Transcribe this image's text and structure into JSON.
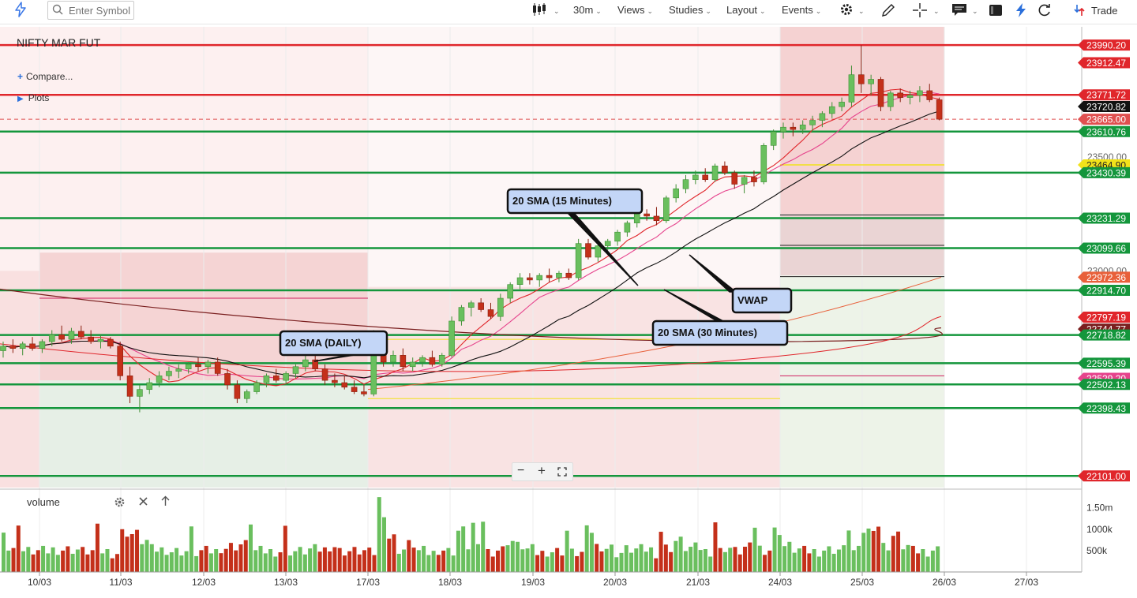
{
  "toolbar": {
    "search_placeholder": "Enter Symbol",
    "interval": "30m",
    "views": "Views",
    "studies": "Studies",
    "layout": "Layout",
    "events": "Events",
    "trade": "Trade",
    "icons": [
      "bolt-icon",
      "search-icon",
      "candlestick-icon",
      "gear-icon",
      "pencil-icon",
      "crosshair-icon",
      "chat-icon",
      "screen-icon",
      "flash-icon",
      "refresh-icon",
      "trade-icon"
    ]
  },
  "legend": {
    "symbol": "NIFTY MAR FUT",
    "compare": "Compare...",
    "plots": "Plots"
  },
  "volume_panel": {
    "label": "volume",
    "icons": [
      "gear-icon",
      "close-icon",
      "arrow-up-icon"
    ]
  },
  "zoom_controls": {
    "minus": "−",
    "plus": "+"
  },
  "colors": {
    "up": "#6abf5e",
    "down": "#c4301a",
    "red_level": "#e0262b",
    "green_level": "#14963c",
    "sma_daily": "#7a1f1f",
    "sma_30": "#111111",
    "sma_15": "#e0262b",
    "vwap": "#e6438c"
  },
  "chart_data": {
    "type": "candlestick",
    "title": "NIFTY MAR FUT",
    "interval": "30m",
    "x_tick_labels": [
      "10/03",
      "11/03",
      "12/03",
      "13/03",
      "17/03",
      "18/03",
      "19/03",
      "20/03",
      "21/03",
      "24/03",
      "25/03",
      "26/03",
      "27/03"
    ],
    "price_axis_ticks": [
      23500,
      23000
    ],
    "volume_axis_ticks": [
      "1.50m",
      "1000k",
      "500k"
    ],
    "ylim": [
      22000,
      24100
    ],
    "price_labels": [
      {
        "value": "23990.20",
        "color": "#e0262b"
      },
      {
        "value": "23912.47",
        "color": "#e0262b"
      },
      {
        "value": "23771.72",
        "color": "#e0262b"
      },
      {
        "value": "23720.82",
        "color": "#111111"
      },
      {
        "value": "23665.00",
        "color": "#e05050"
      },
      {
        "value": "23610.76",
        "color": "#14963c"
      },
      {
        "value": "23500.00",
        "color": "none"
      },
      {
        "value": "23464.90",
        "color": "#f1e21a"
      },
      {
        "value": "23430.39",
        "color": "#14963c"
      },
      {
        "value": "23231.29",
        "color": "#14963c"
      },
      {
        "value": "23099.66",
        "color": "#14963c"
      },
      {
        "value": "23000.00",
        "color": "none"
      },
      {
        "value": "22972.36",
        "color": "#e8603a"
      },
      {
        "value": "22914.70",
        "color": "#14963c"
      },
      {
        "value": "22797.19",
        "color": "#e0262b"
      },
      {
        "value": "22744.77",
        "color": "#7a1f1f"
      },
      {
        "value": "22718.82",
        "color": "#14963c"
      },
      {
        "value": "22595.39",
        "color": "#14963c"
      },
      {
        "value": "22529.20",
        "color": "#e6438c"
      },
      {
        "value": "22502.13",
        "color": "#14963c"
      },
      {
        "value": "22398.43",
        "color": "#14963c"
      },
      {
        "value": "22101.00",
        "color": "#e0262b"
      }
    ],
    "horizontal_levels": {
      "red": [
        23990.2,
        23771.72
      ],
      "green": [
        23610.76,
        23430.39,
        23231.29,
        23099.66,
        22914.7,
        22718.82,
        22595.39,
        22502.13,
        22398.43,
        22101.0
      ]
    },
    "annotations": [
      "20 SMA (15 Minutes)",
      "VWAP",
      "20 SMA (30 Minutes)",
      "20 SMA (DAILY)"
    ],
    "series": [
      {
        "name": "20 SMA (DAILY)",
        "type": "line"
      },
      {
        "name": "20 SMA (30 Minutes)",
        "type": "line"
      },
      {
        "name": "20 SMA (15 Minutes)",
        "type": "line"
      },
      {
        "name": "VWAP",
        "type": "line"
      }
    ],
    "candles": [
      [
        0,
        22650,
        22690,
        22620,
        22670
      ],
      [
        1,
        22670,
        22700,
        22640,
        22660
      ],
      [
        2,
        22660,
        22690,
        22630,
        22680
      ],
      [
        3,
        22680,
        22710,
        22650,
        22660
      ],
      [
        4,
        22660,
        22700,
        22640,
        22690
      ],
      [
        5,
        22690,
        22740,
        22670,
        22720
      ],
      [
        6,
        22720,
        22760,
        22690,
        22700
      ],
      [
        7,
        22700,
        22750,
        22680,
        22735
      ],
      [
        8,
        22735,
        22760,
        22700,
        22710
      ],
      [
        9,
        22710,
        22740,
        22680,
        22690
      ],
      [
        10,
        22690,
        22720,
        22660,
        22700
      ],
      [
        11,
        22700,
        22710,
        22660,
        22670
      ],
      [
        12,
        22670,
        22690,
        22520,
        22540
      ],
      [
        13,
        22540,
        22580,
        22420,
        22450
      ],
      [
        14,
        22450,
        22500,
        22380,
        22480
      ],
      [
        15,
        22480,
        22530,
        22460,
        22510
      ],
      [
        16,
        22510,
        22560,
        22490,
        22540
      ],
      [
        17,
        22540,
        22580,
        22520,
        22560
      ],
      [
        18,
        22560,
        22590,
        22530,
        22570
      ],
      [
        19,
        22570,
        22600,
        22550,
        22590
      ],
      [
        20,
        22590,
        22620,
        22560,
        22580
      ],
      [
        21,
        22580,
        22610,
        22550,
        22600
      ],
      [
        22,
        22600,
        22620,
        22540,
        22550
      ],
      [
        23,
        22550,
        22570,
        22480,
        22500
      ],
      [
        24,
        22500,
        22520,
        22420,
        22440
      ],
      [
        25,
        22440,
        22480,
        22420,
        22470
      ],
      [
        26,
        22470,
        22520,
        22460,
        22510
      ],
      [
        27,
        22510,
        22550,
        22490,
        22540
      ],
      [
        28,
        22540,
        22570,
        22510,
        22520
      ],
      [
        29,
        22520,
        22560,
        22500,
        22550
      ],
      [
        30,
        22550,
        22590,
        22530,
        22580
      ],
      [
        31,
        22580,
        22630,
        22560,
        22610
      ],
      [
        32,
        22610,
        22630,
        22560,
        22570
      ],
      [
        33,
        22570,
        22590,
        22500,
        22520
      ],
      [
        34,
        22520,
        22550,
        22490,
        22510
      ],
      [
        35,
        22510,
        22540,
        22480,
        22490
      ],
      [
        36,
        22490,
        22520,
        22460,
        22470
      ],
      [
        37,
        22470,
        22500,
        22450,
        22460
      ],
      [
        38,
        22460,
        22740,
        22450,
        22690
      ],
      [
        39,
        22690,
        22720,
        22580,
        22600
      ],
      [
        40,
        22600,
        22650,
        22580,
        22630
      ],
      [
        41,
        22630,
        22660,
        22560,
        22580
      ],
      [
        42,
        22580,
        22620,
        22560,
        22600
      ],
      [
        43,
        22600,
        22630,
        22580,
        22620
      ],
      [
        44,
        22620,
        22650,
        22580,
        22590
      ],
      [
        45,
        22590,
        22640,
        22580,
        22630
      ],
      [
        46,
        22630,
        22800,
        22620,
        22780
      ],
      [
        47,
        22780,
        22850,
        22760,
        22840
      ],
      [
        48,
        22840,
        22870,
        22800,
        22860
      ],
      [
        49,
        22860,
        22880,
        22820,
        22830
      ],
      [
        50,
        22830,
        22860,
        22790,
        22800
      ],
      [
        51,
        22800,
        22900,
        22780,
        22880
      ],
      [
        52,
        22880,
        22950,
        22860,
        22940
      ],
      [
        53,
        22940,
        22990,
        22920,
        22970
      ],
      [
        54,
        22970,
        22990,
        22940,
        22960
      ],
      [
        55,
        22960,
        22990,
        22930,
        22980
      ],
      [
        56,
        22980,
        23010,
        22950,
        22970
      ],
      [
        57,
        22970,
        23000,
        22950,
        22990
      ],
      [
        58,
        22990,
        23010,
        22960,
        22970
      ],
      [
        59,
        22970,
        23140,
        22960,
        23120
      ],
      [
        60,
        23120,
        23140,
        23050,
        23060
      ],
      [
        61,
        23060,
        23120,
        23040,
        23110
      ],
      [
        62,
        23110,
        23140,
        23090,
        23130
      ],
      [
        63,
        23130,
        23180,
        23110,
        23170
      ],
      [
        64,
        23170,
        23220,
        23150,
        23210
      ],
      [
        65,
        23210,
        23260,
        23190,
        23250
      ],
      [
        66,
        23250,
        23270,
        23220,
        23240
      ],
      [
        67,
        23240,
        23280,
        23200,
        23220
      ],
      [
        68,
        23220,
        23330,
        23210,
        23320
      ],
      [
        69,
        23320,
        23380,
        23300,
        23360
      ],
      [
        70,
        23360,
        23420,
        23340,
        23400
      ],
      [
        71,
        23400,
        23440,
        23380,
        23420
      ],
      [
        72,
        23420,
        23450,
        23390,
        23400
      ],
      [
        73,
        23400,
        23470,
        23390,
        23460
      ],
      [
        74,
        23460,
        23480,
        23420,
        23430
      ],
      [
        75,
        23430,
        23440,
        23360,
        23380
      ],
      [
        76,
        23380,
        23420,
        23340,
        23410
      ],
      [
        77,
        23410,
        23440,
        23370,
        23390
      ],
      [
        78,
        23390,
        23560,
        23380,
        23550
      ],
      [
        79,
        23550,
        23620,
        23530,
        23610
      ],
      [
        80,
        23610,
        23650,
        23580,
        23630
      ],
      [
        81,
        23630,
        23650,
        23590,
        23620
      ],
      [
        82,
        23620,
        23660,
        23600,
        23640
      ],
      [
        83,
        23640,
        23680,
        23610,
        23660
      ],
      [
        84,
        23660,
        23700,
        23630,
        23690
      ],
      [
        85,
        23690,
        23740,
        23670,
        23720
      ],
      [
        86,
        23720,
        23760,
        23700,
        23740
      ],
      [
        87,
        23740,
        23900,
        23720,
        23860
      ],
      [
        88,
        23860,
        23990,
        23780,
        23820
      ],
      [
        89,
        23820,
        23860,
        23770,
        23840
      ],
      [
        90,
        23840,
        23850,
        23700,
        23720
      ],
      [
        91,
        23720,
        23790,
        23700,
        23780
      ],
      [
        92,
        23780,
        23800,
        23740,
        23760
      ],
      [
        93,
        23760,
        23790,
        23730,
        23770
      ],
      [
        94,
        23770,
        23810,
        23740,
        23790
      ],
      [
        95,
        23790,
        23820,
        23740,
        23750
      ],
      [
        96,
        23750,
        23760,
        23660,
        23665
      ]
    ]
  }
}
